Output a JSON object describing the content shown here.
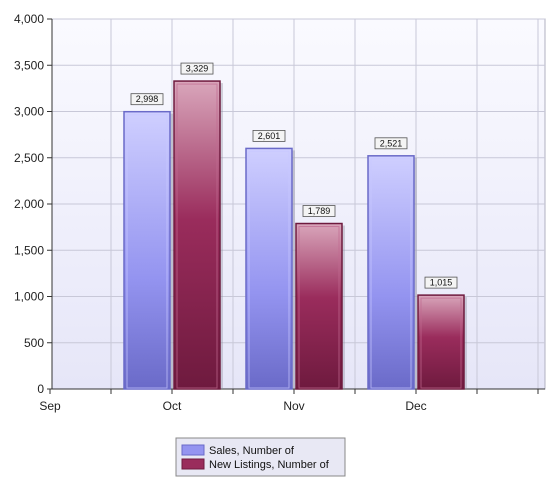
{
  "chart_data": {
    "type": "bar",
    "categories": [
      "Sep",
      "Oct",
      "Nov",
      "Dec"
    ],
    "series": [
      {
        "name": "Sales, Number of",
        "values": [
          null,
          2998,
          2601,
          2521
        ],
        "labels": [
          "",
          "2,998",
          "2,601",
          "2,521"
        ]
      },
      {
        "name": "New Listings, Number of",
        "values": [
          null,
          3329,
          1789,
          1015
        ],
        "labels": [
          "",
          "3,329",
          "1,789",
          "1,015"
        ]
      }
    ],
    "yticks": [
      0,
      500,
      1000,
      1500,
      2000,
      2500,
      3000,
      3500,
      4000
    ],
    "ytick_labels": [
      "0",
      "500",
      "1,000",
      "1,500",
      "2,000",
      "2,500",
      "3,000",
      "3,500",
      "4,000"
    ],
    "ylim": [
      0,
      4000
    ],
    "grid": true,
    "legend_position": "bottom-center",
    "title": "",
    "xlabel": "",
    "ylabel": "",
    "colors": {
      "sales": "#9494f0",
      "sales_dark": "#6a6ac8",
      "listings": "#9a2c5c",
      "listings_dark": "#6e1a3e",
      "plot_bg_top": "#fafaff",
      "plot_bg_bottom": "#e6e6f8",
      "grid": "#c8c8d8",
      "legend_bg": "#e8e8f4"
    }
  }
}
